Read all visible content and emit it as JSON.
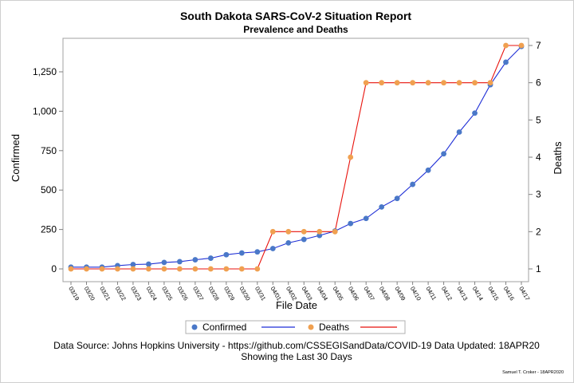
{
  "chart_data": {
    "type": "line",
    "title": "South Dakota SARS-CoV-2 Situation Report",
    "subtitle": "Prevalence and Deaths",
    "xlabel": "File Date",
    "ylabel": "Confirmed",
    "y2label": "Deaths",
    "categories": [
      "03/19",
      "03/20",
      "03/21",
      "03/22",
      "03/23",
      "03/24",
      "03/25",
      "03/26",
      "03/27",
      "03/28",
      "03/29",
      "03/30",
      "03/31",
      "04/01",
      "04/02",
      "04/03",
      "04/04",
      "04/05",
      "04/06",
      "04/07",
      "04/08",
      "04/09",
      "04/10",
      "04/11",
      "04/12",
      "04/13",
      "04/14",
      "04/15",
      "04/16",
      "04/17"
    ],
    "ylim": [
      0,
      1450
    ],
    "y_ticks": [
      0,
      250,
      500,
      750,
      1000,
      1250
    ],
    "y_tick_labels": [
      "0",
      "250",
      "500",
      "750",
      "1,000",
      "1,250"
    ],
    "y2lim": [
      0.57,
      7.2
    ],
    "y2_ticks": [
      1,
      2,
      3,
      4,
      5,
      6,
      7
    ],
    "y2_tick_labels": [
      "1",
      "2",
      "3",
      "4",
      "5",
      "6",
      "7"
    ],
    "series": [
      {
        "name": "Confirmed",
        "axis": "left",
        "line_color": "#1f2fd6",
        "marker_color": "#4a78c8",
        "values": [
          11,
          11,
          11,
          21,
          28,
          30,
          41,
          46,
          58,
          68,
          90,
          101,
          108,
          129,
          165,
          187,
          212,
          240,
          288,
          320,
          393,
          447,
          536,
          626,
          730,
          868,
          988,
          1168,
          1311,
          1411
        ]
      },
      {
        "name": "Deaths",
        "axis": "right",
        "line_color": "#e8120c",
        "marker_color": "#f0a050",
        "values": [
          1,
          1,
          1,
          1,
          1,
          1,
          1,
          1,
          1,
          1,
          1,
          1,
          1,
          2,
          2,
          2,
          2,
          2,
          4,
          6,
          6,
          6,
          6,
          6,
          6,
          6,
          6,
          6,
          7,
          7
        ]
      }
    ],
    "legend": {
      "position": "bottom"
    }
  },
  "footer": {
    "source": "Data Source: Johns Hopkins University - https://github.com/CSSEGISandData/COVID-19 Data Updated: 18APR20",
    "showing": "Showing the Last 30 Days",
    "credit": "Samuel T. Croker - 18APR2020"
  }
}
